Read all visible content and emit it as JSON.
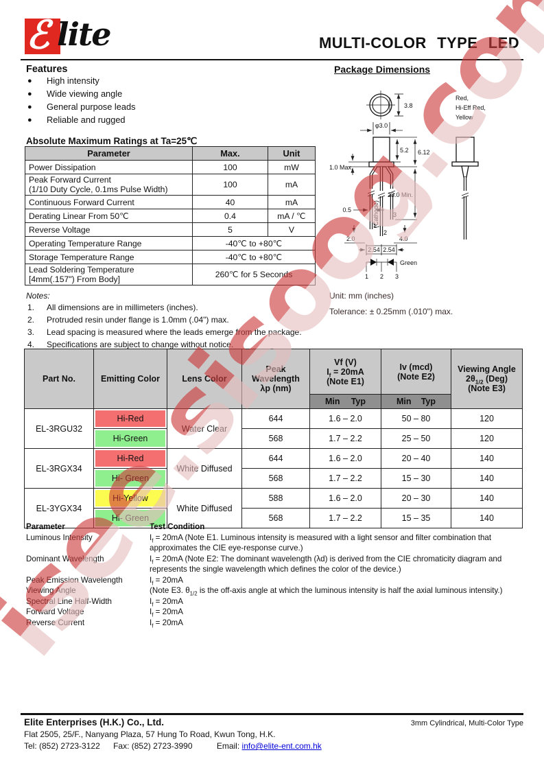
{
  "header": {
    "logo_e": "ℰ",
    "logo_rest": "lite",
    "title": "MULTI-COLOR TYPE LED"
  },
  "features": {
    "heading": "Features",
    "items": [
      "High intensity",
      "Wide viewing angle",
      "General purpose leads",
      "Reliable and rugged"
    ]
  },
  "package": {
    "heading": "Package Dimensions",
    "unit_note": "Unit: mm (inches)",
    "tolerance_note": "Tolerance: ± 0.25mm (.010\") max.",
    "labels": {
      "dim_3_8": "3.8",
      "dia": "φ3.0",
      "dim_5_2": "5.2",
      "dim_6_12": "6.12",
      "flange_max": "1.0 Max.",
      "lead_len": "23.0 Min.",
      "lead_w": "0.5",
      "dim_2_0": "2.0",
      "dim_4_0": "4.0",
      "pitch_l": "2.54",
      "pitch_r": "2.54",
      "pin1": "1",
      "pin2": "2",
      "pin3": "3",
      "cathode": "(Cathode)",
      "schem_pin1": "1",
      "schem_pin2": "2",
      "schem_pin3": "3",
      "green": "Green",
      "colors_line1": "Red,",
      "colors_line2": "Hi-Eff Red,",
      "colors_line3": "Yellow"
    },
    "yellow_label_color": "#c9b422"
  },
  "ratings": {
    "heading": "Absolute Maximum Ratings at Ta=25℃",
    "columns": [
      "Parameter",
      "Max.",
      "Unit"
    ],
    "rows": [
      {
        "param": "Power Dissipation",
        "max": "100",
        "unit": "mW"
      },
      {
        "param_line1": "Peak Forward Current",
        "param_line2": "(1/10 Duty Cycle, 0.1ms Pulse Width)",
        "max": "100",
        "unit": "mA"
      },
      {
        "param": "Continuous Forward Current",
        "max": "40",
        "unit": "mA"
      },
      {
        "param": "Derating Linear From 50℃",
        "max": "0.4",
        "unit": "mA / ℃"
      },
      {
        "param": "Reverse Voltage",
        "max": "5",
        "unit": "V"
      },
      {
        "param": "Operating Temperature Range",
        "merged": "-40℃ to +80℃"
      },
      {
        "param": "Storage Temperature Range",
        "merged": "-40℃ to +80℃"
      },
      {
        "param_line1": "Lead Soldering Temperature",
        "param_line2": "[4mm(.157\") From Body]",
        "merged": "260℃  for 5 Seconds"
      }
    ]
  },
  "notes": {
    "heading": "Notes:",
    "items": [
      {
        "num": "1.",
        "text": "All dimensions are in millimeters (inches)."
      },
      {
        "num": "2.",
        "text": "Protruded resin under flange is 1.0mm (.04\") max."
      },
      {
        "num": "3.",
        "text": "Lead spacing is measured where the leads emerge from the package."
      },
      {
        "num": "4.",
        "text": "Specifications are subject to change without notice."
      }
    ]
  },
  "spec_table": {
    "headers": {
      "part_no": "Part No.",
      "emitting": "Emitting Color",
      "lens": "Lens Color",
      "peak": [
        "Peak",
        "Wavelength",
        "λp (nm)"
      ],
      "vf": [
        "Vf (V)",
        "If = 20mA",
        "(Note E1)"
      ],
      "iv": [
        "Iv (mcd)",
        "(Note E2)"
      ],
      "viewing": [
        "Viewing Angle",
        "2θ1/2 (Deg)",
        "(Note E3)"
      ],
      "min": "Min",
      "typ": "Typ"
    },
    "colors": {
      "hi_red": "#f46f6f",
      "hi_green": "#8fef8f",
      "hi_yellow": "#fbfb50"
    },
    "groups": [
      {
        "part_no": "EL-3RGU32",
        "lens": "Water Clear",
        "rows": [
          {
            "color": "Hi-Red",
            "bg": "#f46f6f",
            "peak": "644",
            "vf": "1.6 – 2.0",
            "iv": "50 – 80",
            "angle": "120"
          },
          {
            "color": "Hi-Green",
            "bg": "#8fef8f",
            "peak": "568",
            "vf": "1.7 – 2.2",
            "iv": "25 – 50",
            "angle": "120"
          }
        ]
      },
      {
        "part_no": "EL-3RGX34",
        "lens": "White Diffused",
        "rows": [
          {
            "color": "Hi-Red",
            "bg": "#f46f6f",
            "peak": "644",
            "vf": "1.6 – 2.0",
            "iv": "20 – 40",
            "angle": "140"
          },
          {
            "color": "Hi- Green",
            "bg": "#8fef8f",
            "peak": "568",
            "vf": "1.7 – 2.2",
            "iv": "15 – 30",
            "angle": "140"
          }
        ]
      },
      {
        "part_no": "EL-3YGX34",
        "lens": "White Diffused",
        "rows": [
          {
            "color": "Hi-Yellow",
            "bg": "#fbfb50",
            "peak": "588",
            "vf": "1.6 – 2.0",
            "iv": "20 – 30",
            "angle": "140"
          },
          {
            "color": "Hi- Green",
            "bg": "#8fef8f",
            "peak": "568",
            "vf": "1.7 – 2.2",
            "iv": "15 – 35",
            "angle": "140"
          }
        ]
      }
    ]
  },
  "test_conditions": {
    "param_heading": "Parameter",
    "cond_heading": "Test Condition",
    "rows": [
      {
        "param": "Luminous Intensity",
        "cond": "If = 20mA (Note E1. Luminous intensity is measured with a light sensor and filter combination that approximates the CIE eye-response curve.)"
      },
      {
        "param": "Dominant Wavelength",
        "cond": "If = 20mA (Note E2: The dominant wavelength (λd) is derived from the CIE chromaticity diagram and represents the single wavelength which defines the color of the device.)"
      },
      {
        "param": "Peak Emission Wavelength",
        "cond": "If = 20mA"
      },
      {
        "param": "Viewing Angle",
        "cond": "(Note E3.  θ1/2 is the off-axis angle at which the luminous intensity is half the axial luminous intensity.)"
      },
      {
        "param": "Spectral Line Half-Width",
        "cond": "If = 20mA"
      },
      {
        "param": "Forward Voltage",
        "cond": "If = 20mA"
      },
      {
        "param": "Reverse Current",
        "cond": "If = 20mA"
      }
    ]
  },
  "footer": {
    "company": "Elite Enterprises (H.K.) Co., Ltd.",
    "product": "3mm Cylindrical, Multi-Color Type",
    "address": "Flat 2505, 25/F., Nanyang Plaza, 57 Hung To Road, Kwun Tong, H.K.",
    "tel": "Tel: (852) 2723-3122",
    "fax": "Fax: (852) 2723-3990",
    "email_label": "Email:",
    "email": "info@elite-ent.com.hk"
  },
  "watermark": {
    "text": "isee.sisoog.com",
    "color_top": "#cd3a3a",
    "color_bottom": "#e6bcbc"
  }
}
